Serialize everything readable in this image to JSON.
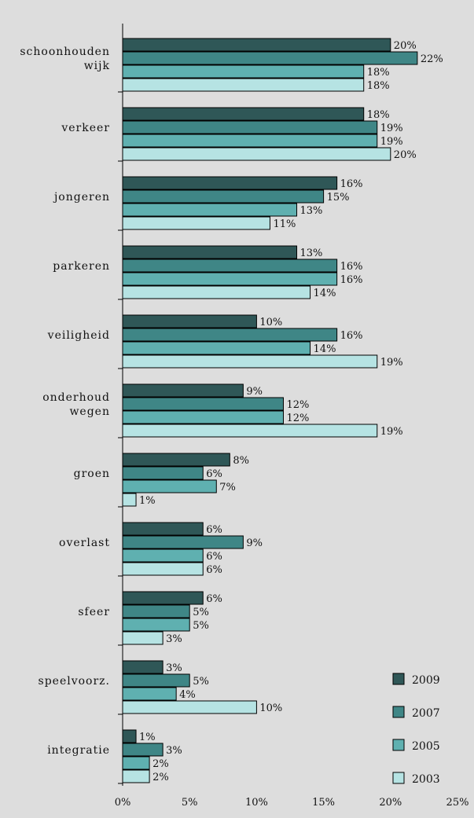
{
  "chart_data": {
    "type": "bar",
    "orientation": "horizontal",
    "categories": [
      [
        "schoonhouden",
        "wijk"
      ],
      [
        "verkeer"
      ],
      [
        "jongeren"
      ],
      [
        "parkeren"
      ],
      [
        "veiligheid"
      ],
      [
        "onderhoud",
        "wegen"
      ],
      [
        "groen"
      ],
      [
        "overlast"
      ],
      [
        "sfeer"
      ],
      [
        "speelvoorz."
      ],
      [
        "integratie"
      ]
    ],
    "series": [
      {
        "name": "2009",
        "color": "#2F5757",
        "values": [
          20,
          18,
          16,
          13,
          10,
          9,
          8,
          6,
          6,
          3,
          1
        ]
      },
      {
        "name": "2007",
        "color": "#3F8686",
        "values": [
          22,
          19,
          15,
          16,
          16,
          12,
          6,
          9,
          5,
          5,
          3
        ]
      },
      {
        "name": "2005",
        "color": "#5FB0B0",
        "values": [
          18,
          19,
          13,
          16,
          14,
          12,
          7,
          6,
          5,
          4,
          2
        ]
      },
      {
        "name": "2003",
        "color": "#B6E3E3",
        "values": [
          18,
          20,
          11,
          14,
          19,
          19,
          1,
          6,
          3,
          10,
          2
        ]
      }
    ],
    "value_suffix": "%",
    "xlim": [
      0,
      25
    ],
    "xticks": [
      "0%",
      "5%",
      "10%",
      "15%",
      "20%",
      "25%"
    ],
    "xtick_values": [
      0,
      5,
      10,
      15,
      20,
      25
    ],
    "background": "#DDDDDD",
    "legend_position": "bottom-right",
    "grid": false
  }
}
